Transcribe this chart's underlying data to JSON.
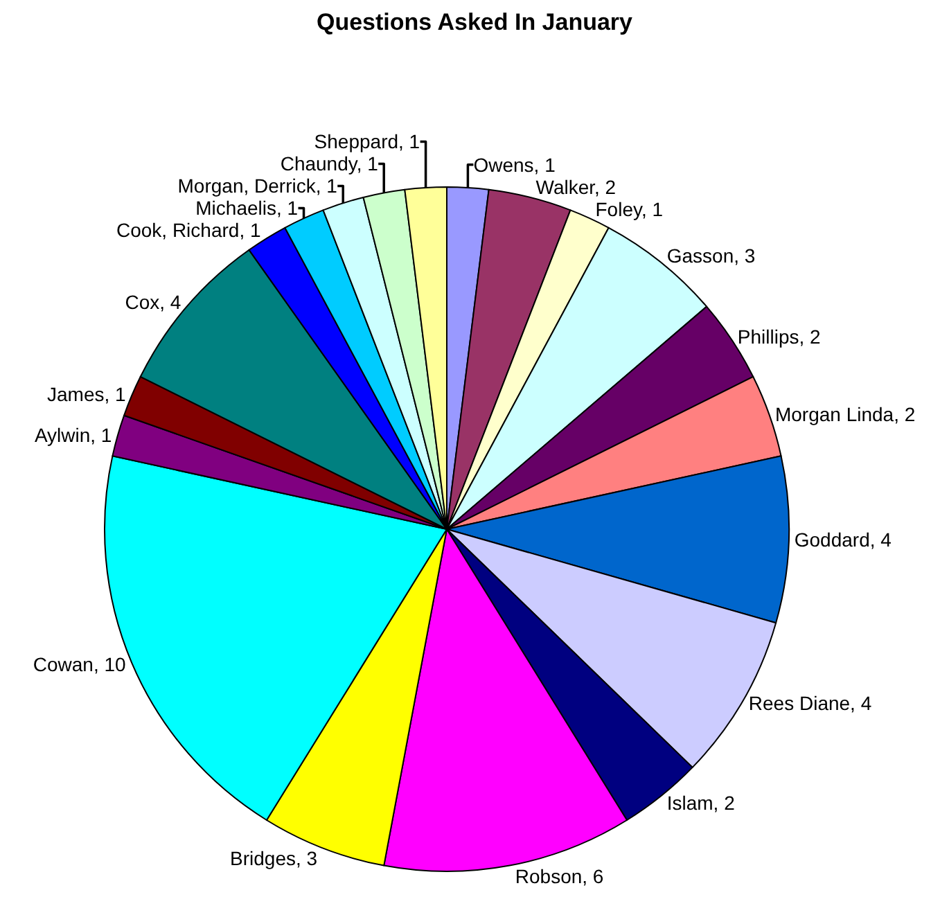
{
  "chart_data": {
    "type": "pie",
    "title": "Questions Asked In January",
    "categories": [
      "Owens, 1",
      "Walker, 2",
      "Foley, 1",
      "Gasson, 3",
      "Phillips, 2",
      "Morgan Linda, 2",
      "Goddard, 4",
      "Rees Diane, 4",
      "Islam, 2",
      "Robson, 6",
      "Bridges, 3",
      "Cowan, 10",
      "Aylwin, 1",
      "James, 1",
      "Cox, 4",
      "Cook, Richard, 1",
      "Michaelis, 1",
      "Morgan, Derrick, 1",
      "Chaundy, 1",
      "Sheppard, 1"
    ],
    "values": [
      1,
      2,
      1,
      3,
      2,
      2,
      4,
      4,
      2,
      6,
      3,
      10,
      1,
      1,
      4,
      1,
      1,
      1,
      1,
      1
    ],
    "colors": [
      "#9999ff",
      "#993366",
      "#ffffcc",
      "#ccffff",
      "#660066",
      "#ff8080",
      "#0066cc",
      "#ccccff",
      "#000080",
      "#ff00ff",
      "#ffff00",
      "#00ffff",
      "#800080",
      "#800000",
      "#008080",
      "#0000ff",
      "#00ccff",
      "#ccffff",
      "#ccffcc",
      "#ffff99"
    ]
  }
}
